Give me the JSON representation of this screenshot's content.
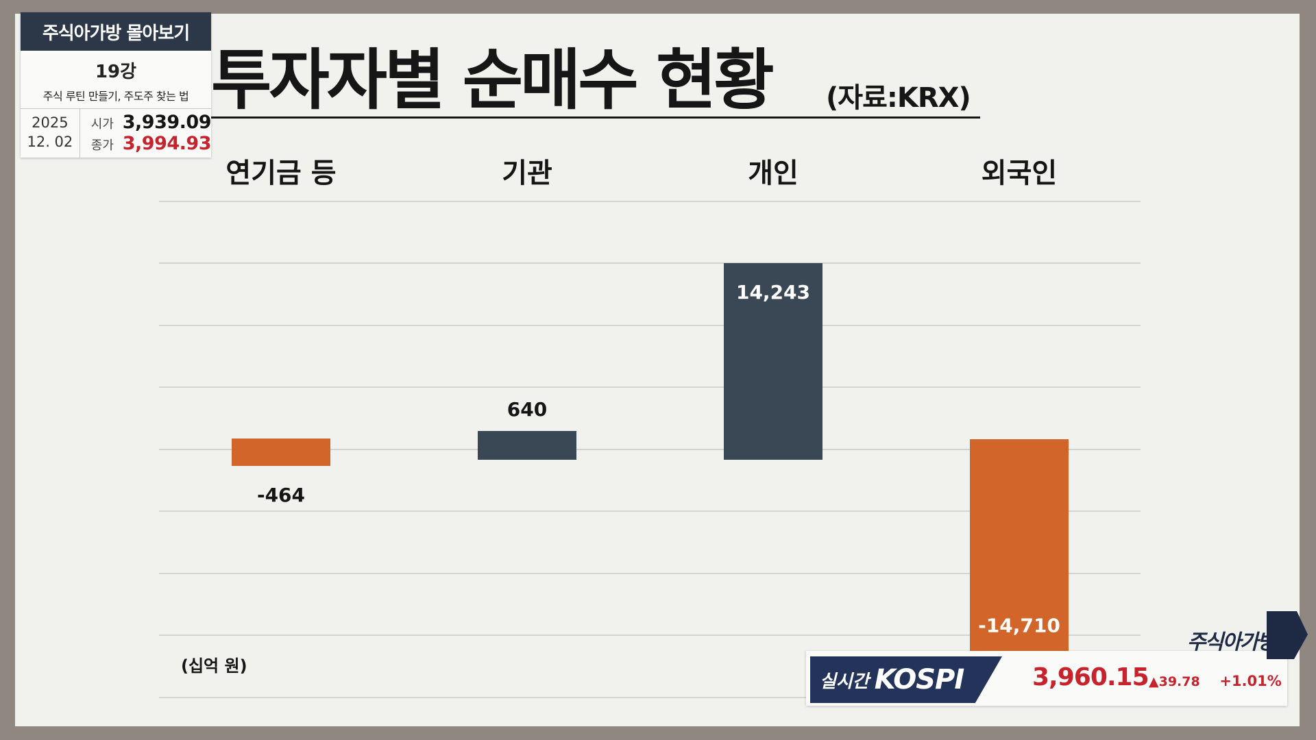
{
  "info_card": {
    "header": "주식아가방 몰아보기",
    "lesson": "19강",
    "topic": "주식 루틴 만들기, 주도주 찾는 법",
    "date_year": "2025",
    "date_md": "12. 02",
    "open_label": "시가",
    "open_value": "3,939.09",
    "close_label": "종가",
    "close_value": "3,994.93"
  },
  "title": {
    "main": "투자자별 순매수 현황",
    "source": "(자료:KRX)"
  },
  "chart_data": {
    "type": "bar",
    "categories": [
      "연기금 등",
      "기관",
      "개인",
      "외국인"
    ],
    "values": [
      -464,
      640,
      14243,
      -14710
    ],
    "value_labels": [
      "-464",
      "640",
      "14,243",
      "-14,710"
    ],
    "unit": "(십억 원)",
    "colors": {
      "negative": "#d2662a",
      "positive": "#3a4754"
    },
    "ylim": [
      -15000,
      16000
    ],
    "grid": true,
    "legend": "none"
  },
  "ticker": {
    "realtime_label": "실시간",
    "index_name": "KOSPI",
    "price": "3,960.15",
    "change": "▲39.78",
    "change_pct": "+1.01%",
    "brand": "주식아가방"
  },
  "colors": {
    "price_up": "#c8232c",
    "header_bg": "#2c3748"
  }
}
